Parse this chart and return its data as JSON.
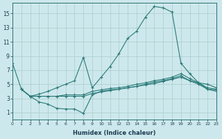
{
  "bg_color": "#cde8ec",
  "grid_color": "#a8cccc",
  "line_color": "#2a7a78",
  "xlabel": "Humidex (Indice chaleur)",
  "xlim": [
    0,
    23
  ],
  "ylim": [
    0,
    16.5
  ],
  "xticks": [
    0,
    1,
    2,
    3,
    4,
    5,
    6,
    7,
    8,
    9,
    10,
    11,
    12,
    13,
    14,
    15,
    16,
    17,
    18,
    19,
    20,
    21,
    22,
    23
  ],
  "yticks": [
    1,
    3,
    5,
    7,
    9,
    11,
    13,
    15
  ],
  "line1_x": [
    0,
    1,
    2,
    3,
    4,
    5,
    6,
    7,
    8,
    9,
    10,
    11,
    12,
    13,
    14,
    15,
    16,
    17,
    18,
    19,
    20,
    21,
    22,
    23
  ],
  "line1_y": [
    8.0,
    4.3,
    3.3,
    3.6,
    4.0,
    4.5,
    5.0,
    5.5,
    8.8,
    4.5,
    6.0,
    7.5,
    9.3,
    11.5,
    12.5,
    14.5,
    16.0,
    15.8,
    15.2,
    8.0,
    6.5,
    5.2,
    5.0,
    4.5
  ],
  "line2_x": [
    1,
    2,
    3,
    4,
    5,
    6,
    7,
    8,
    9,
    10,
    11,
    12,
    13,
    14,
    15,
    16,
    17,
    18,
    19,
    20,
    21,
    22,
    23
  ],
  "line2_y": [
    4.3,
    3.3,
    2.5,
    2.2,
    1.6,
    1.5,
    1.5,
    0.9,
    3.5,
    4.0,
    4.2,
    4.3,
    4.5,
    4.7,
    5.0,
    5.3,
    5.5,
    5.8,
    6.2,
    5.5,
    5.2,
    4.3,
    4.2
  ],
  "line3_x": [
    1,
    2,
    3,
    4,
    5,
    6,
    7,
    8,
    9,
    10,
    11,
    12,
    13,
    14,
    15,
    16,
    17,
    18,
    19,
    20,
    21,
    22,
    23
  ],
  "line3_y": [
    4.3,
    3.3,
    3.3,
    3.3,
    3.3,
    3.5,
    3.5,
    3.5,
    4.0,
    4.2,
    4.4,
    4.5,
    4.7,
    5.0,
    5.2,
    5.5,
    5.7,
    6.0,
    6.5,
    5.8,
    5.2,
    4.5,
    4.3
  ],
  "line4_x": [
    1,
    2,
    3,
    4,
    5,
    6,
    7,
    8,
    9,
    10,
    11,
    12,
    13,
    14,
    15,
    16,
    17,
    18,
    19,
    20,
    21,
    22,
    23
  ],
  "line4_y": [
    4.3,
    3.3,
    3.3,
    3.3,
    3.3,
    3.3,
    3.3,
    3.3,
    3.7,
    3.9,
    4.1,
    4.3,
    4.5,
    4.7,
    4.9,
    5.1,
    5.4,
    5.7,
    6.0,
    5.5,
    5.0,
    4.3,
    4.0
  ]
}
